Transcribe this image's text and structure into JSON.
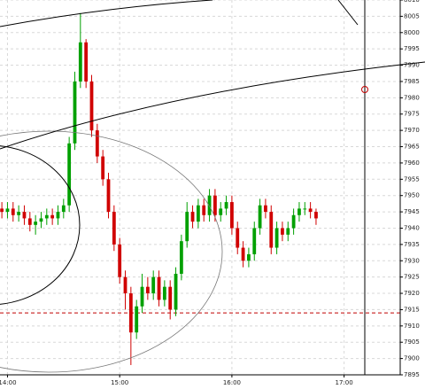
{
  "chart_data": {
    "type": "candlestick",
    "x": [
      837,
      840,
      843,
      846,
      849,
      852,
      855,
      858,
      861,
      864,
      867,
      870,
      873,
      876,
      879,
      882,
      885,
      888,
      891,
      894,
      897,
      900,
      903,
      906,
      909,
      912,
      915,
      918,
      921,
      924,
      927,
      930,
      933,
      936,
      939,
      942,
      945,
      948,
      951,
      954,
      957,
      960,
      963,
      966,
      969,
      972,
      975,
      978,
      981,
      984,
      987,
      990,
      993,
      996,
      999,
      1002,
      1005
    ],
    "open": [
      7946,
      7945,
      7946,
      7944,
      7945,
      7943,
      7941,
      7942,
      7943,
      7944,
      7943,
      7945,
      7947,
      7966,
      7985,
      7997,
      7985,
      7970,
      7962,
      7955,
      7945,
      7935,
      7925,
      7920,
      7908,
      7916,
      7922,
      7920,
      7925,
      7918,
      7922,
      7915,
      7926,
      7936,
      7945,
      7942,
      7947,
      7944,
      7950,
      7944,
      7946,
      7948,
      7940,
      7934,
      7930,
      7932,
      7940,
      7947,
      7945,
      7934,
      7940,
      7938,
      7940,
      7944,
      7946,
      7946,
      7945
    ],
    "high": [
      7948,
      7948,
      7948,
      7947,
      7947,
      7945,
      7944,
      7945,
      7946,
      7946,
      7947,
      7949,
      7968,
      7988,
      8006,
      7998,
      7987,
      7972,
      7964,
      7957,
      7947,
      7937,
      7927,
      7922,
      7918,
      7926,
      7925,
      7927,
      7927,
      7924,
      7924,
      7928,
      7938,
      7948,
      7947,
      7949,
      7949,
      7952,
      7952,
      7948,
      7950,
      7950,
      7942,
      7936,
      7934,
      7942,
      7949,
      7949,
      7947,
      7942,
      7942,
      7942,
      7946,
      7948,
      7948,
      7948,
      7946
    ],
    "low": [
      7943,
      7943,
      7942,
      7942,
      7941,
      7939,
      7938,
      7940,
      7941,
      7941,
      7941,
      7943,
      7945,
      7964,
      7983,
      7983,
      7968,
      7960,
      7953,
      7943,
      7933,
      7923,
      7915,
      7898,
      7906,
      7914,
      7918,
      7918,
      7916,
      7916,
      7912,
      7913,
      7924,
      7934,
      7940,
      7940,
      7942,
      7942,
      7942,
      7942,
      7944,
      7938,
      7932,
      7928,
      7928,
      7930,
      7938,
      7943,
      7932,
      7932,
      7936,
      7936,
      7938,
      7942,
      7944,
      7943,
      7941
    ],
    "close": [
      7945,
      7946,
      7944,
      7945,
      7943,
      7941,
      7942,
      7943,
      7944,
      7943,
      7945,
      7947,
      7966,
      7985,
      7997,
      7985,
      7970,
      7962,
      7955,
      7945,
      7935,
      7925,
      7920,
      7908,
      7916,
      7922,
      7920,
      7925,
      7918,
      7922,
      7915,
      7926,
      7936,
      7945,
      7942,
      7947,
      7944,
      7950,
      7944,
      7946,
      7948,
      7940,
      7934,
      7930,
      7932,
      7940,
      7947,
      7945,
      7934,
      7940,
      7938,
      7940,
      7944,
      7946,
      7946,
      7945,
      7943
    ],
    "up_color": "#00a000",
    "down_color": "#d00000",
    "xlim": [
      836,
      1050
    ],
    "xticks": [
      {
        "value": 840,
        "label": "14:00"
      },
      {
        "value": 900,
        "label": "15:00"
      },
      {
        "value": 960,
        "label": "16:00"
      },
      {
        "value": 1020,
        "label": "17:00"
      }
    ],
    "ylim": [
      7895,
      8010
    ],
    "yticks": [
      7895,
      7900,
      7905,
      7910,
      7915,
      7920,
      7925,
      7930,
      7935,
      7940,
      7945,
      7950,
      7955,
      7960,
      7965,
      7970,
      7975,
      7980,
      7985,
      7990,
      7995,
      8000,
      8005,
      8010
    ],
    "reference_line": 7914,
    "reference_color": "#c00000",
    "grid": true
  }
}
